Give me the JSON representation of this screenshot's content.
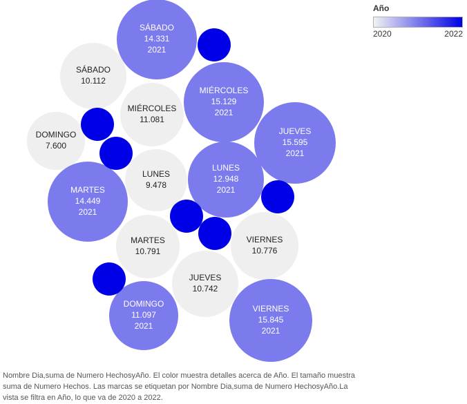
{
  "legend": {
    "title": "Año",
    "min_label": "2020",
    "max_label": "2022",
    "color_min": "#f2f2f2",
    "color_max": "#0000e6"
  },
  "caption": "Nombre Dia,suma de Numero HechosyAño. El color muestra detalles acerca de Año. El tamaño muestra suma de Numero Hechos. Las marcas se etiquetan por Nombre Dia,suma de Numero HechosyAño.La vista se filtra en Año, lo que va de 2020 a 2022.",
  "chart_data": {
    "type": "bubble",
    "color_scale": {
      "2020": "#efefef",
      "2021": "#7b7bee",
      "2022": "#0000e6"
    },
    "bubbles": [
      {
        "day": "SÁBADO",
        "value_label": "14.331",
        "value": 14331,
        "year": "2021"
      },
      {
        "day": "SÁBADO",
        "value_label": "10.112",
        "value": 10112,
        "year": "2020"
      },
      {
        "day": "MIÉRCOLES",
        "value_label": "15.129",
        "value": 15129,
        "year": "2021"
      },
      {
        "day": "MIÉRCOLES",
        "value_label": "11.081",
        "value": 11081,
        "year": "2020"
      },
      {
        "day": "DOMINGO",
        "value_label": "7.600",
        "value": 7600,
        "year": "2020"
      },
      {
        "day": "JUEVES",
        "value_label": "15.595",
        "value": 15595,
        "year": "2021"
      },
      {
        "day": "LUNES",
        "value_label": "12.948",
        "value": 12948,
        "year": "2021"
      },
      {
        "day": "LUNES",
        "value_label": "9.478",
        "value": 9478,
        "year": "2020"
      },
      {
        "day": "MARTES",
        "value_label": "14.449",
        "value": 14449,
        "year": "2021"
      },
      {
        "day": "MARTES",
        "value_label": "10.791",
        "value": 10791,
        "year": "2020"
      },
      {
        "day": "VIERNES",
        "value_label": "10.776",
        "value": 10776,
        "year": "2020"
      },
      {
        "day": "JUEVES",
        "value_label": "10.742",
        "value": 10742,
        "year": "2020"
      },
      {
        "day": "DOMINGO",
        "value_label": "11.097",
        "value": 11097,
        "year": "2021"
      },
      {
        "day": "VIERNES",
        "value_label": "15.845",
        "value": 15845,
        "year": "2021"
      },
      {
        "day": "",
        "value_label": "",
        "value": null,
        "year": "2022"
      },
      {
        "day": "",
        "value_label": "",
        "value": null,
        "year": "2022"
      },
      {
        "day": "",
        "value_label": "",
        "value": null,
        "year": "2022"
      },
      {
        "day": "",
        "value_label": "",
        "value": null,
        "year": "2022"
      },
      {
        "day": "",
        "value_label": "",
        "value": null,
        "year": "2022"
      },
      {
        "day": "",
        "value_label": "",
        "value": null,
        "year": "2022"
      },
      {
        "day": "",
        "value_label": "",
        "value": null,
        "year": "2022"
      }
    ]
  }
}
